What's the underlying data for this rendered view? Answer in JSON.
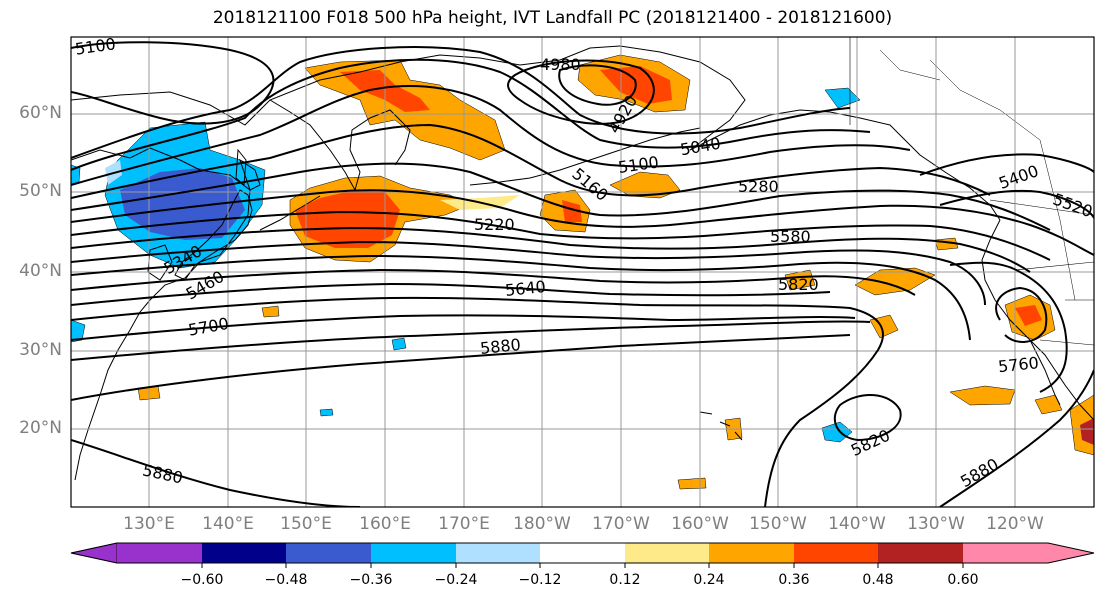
{
  "title": "2018121100 F018 500 hPa height, IVT Landfall PC (2018121400 - 2018121600)",
  "lat_labels": [
    "60°N",
    "50°N",
    "40°N",
    "30°N",
    "20°N"
  ],
  "lon_labels": [
    "130°E",
    "140°E",
    "150°E",
    "160°E",
    "170°E",
    "180°W",
    "170°W",
    "160°W",
    "150°W",
    "140°W",
    "130°W",
    "120°W"
  ],
  "contour_labels": [
    "5100",
    "4980",
    "4920",
    "5040",
    "5100",
    "5160",
    "5280",
    "5220",
    "5400",
    "5520",
    "5340",
    "5460",
    "5580",
    "5640",
    "5700",
    "5820",
    "5880",
    "5760",
    "5820",
    "5880",
    "5880"
  ],
  "colorbar": {
    "ticks": [
      "−0.60",
      "−0.48",
      "−0.36",
      "−0.24",
      "−0.12",
      "0.12",
      "0.24",
      "0.36",
      "0.48",
      "0.60"
    ],
    "colors": [
      "#9932CC",
      "#00008B",
      "#3A5BD0",
      "#00BFFF",
      "#B0E0FF",
      "#FFFFFF",
      "#FFEA8A",
      "#FFA500",
      "#FF4500",
      "#B22222",
      "#FF88AA"
    ]
  }
}
